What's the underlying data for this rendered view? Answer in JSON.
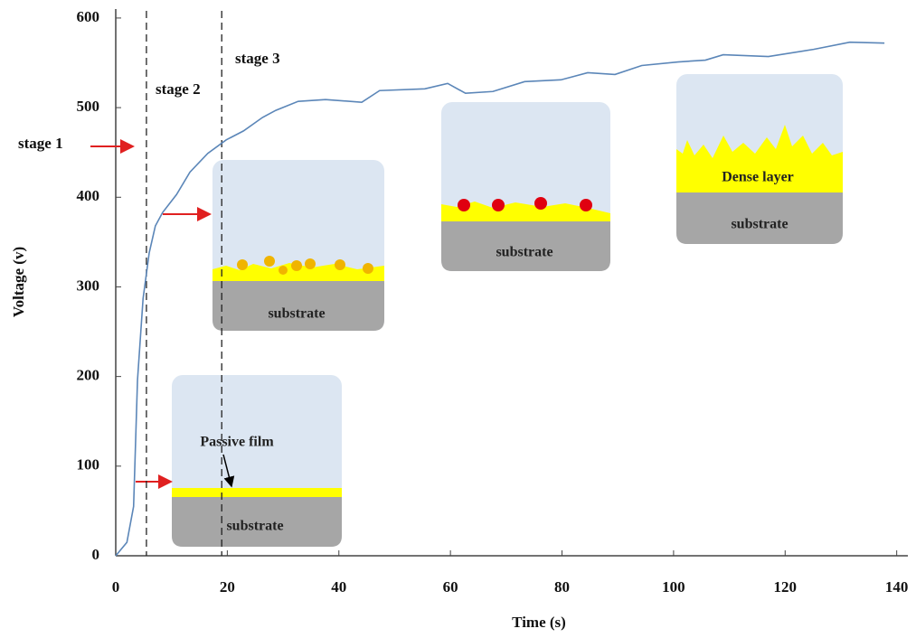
{
  "chart_data": {
    "type": "line",
    "xlabel": "Time (s)",
    "ylabel": "Voltage (v)",
    "x": [
      0,
      2,
      3.2,
      3.9,
      4.9,
      6,
      7.1,
      8.4,
      10.9,
      13.3,
      16.5,
      19.8,
      22.9,
      26.3,
      28.7,
      32.7,
      37.6,
      44.1,
      47.3,
      55.4,
      59.5,
      62.7,
      67.6,
      73.3,
      79.8,
      84.6,
      89.5,
      94.3,
      100.8,
      105.7,
      108.9,
      117,
      125.1,
      131.6,
      137.8
    ],
    "series": [
      {
        "color": "#5b86b8",
        "values": [
          0,
          15,
          55,
          196,
          287,
          338,
          368,
          383,
          403,
          428,
          449,
          464,
          474,
          489,
          497,
          507,
          509,
          506,
          519,
          521,
          527,
          516,
          518,
          529,
          531,
          539,
          537,
          547,
          551,
          553,
          559,
          557,
          565,
          573,
          572
        ]
      }
    ],
    "xlim": [
      0,
      142
    ],
    "ylim": [
      0,
      610
    ],
    "xticks": [
      0,
      20,
      40,
      60,
      80,
      100,
      120,
      140
    ],
    "yticks": [
      0,
      100,
      200,
      300,
      400,
      500,
      600
    ],
    "stage_boundaries": [
      5.5,
      19
    ],
    "stage_labels": [
      "stage 1",
      "stage 2",
      "stage 3"
    ],
    "insets": [
      {
        "film_label": "Passive film",
        "substrate": "substrate"
      },
      {
        "substrate": "substrate"
      },
      {
        "substrate": "substrate"
      },
      {
        "film_label": "Dense layer",
        "substrate": "substrate"
      }
    ]
  }
}
